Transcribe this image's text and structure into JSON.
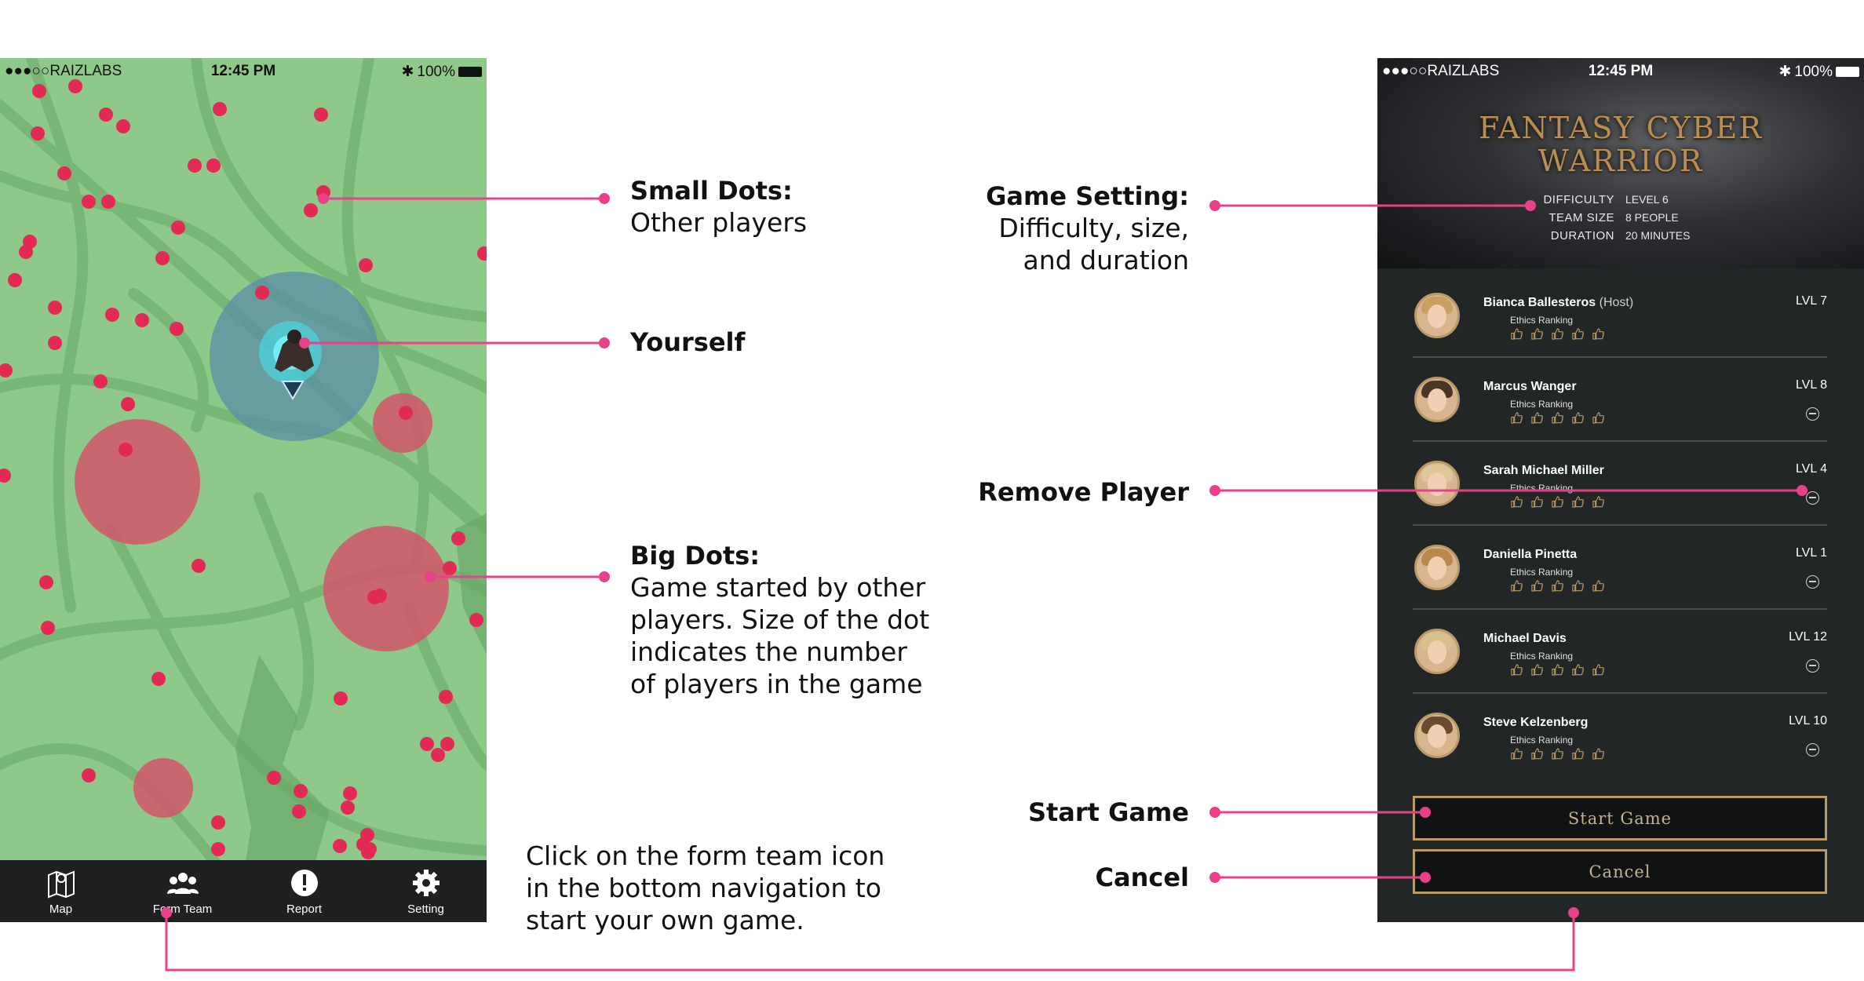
{
  "left_phone": {
    "status": {
      "carrier": "●●●○○RAIZLABS",
      "time": "12:45 PM",
      "battery": "100%"
    },
    "nav": [
      {
        "label": "Map",
        "icon": "map-icon"
      },
      {
        "label": "Form Team",
        "icon": "team-icon"
      },
      {
        "label": "Report",
        "icon": "alert-icon"
      },
      {
        "label": "Setting",
        "icon": "gear-icon"
      }
    ],
    "colors": {
      "map": "#8ec98a",
      "road": "#76b474",
      "player_dot": "#e22a55",
      "game_dot": "#d4566a",
      "nav": "#1f2021"
    }
  },
  "annotations": {
    "small_dots": {
      "title": "Small Dots:",
      "desc": "Other players"
    },
    "yourself": {
      "title": "Yourself"
    },
    "big_dots": {
      "title": "Big Dots:",
      "desc": [
        "Game started by other",
        "players. Size of the dot",
        "indicates the number",
        "of players in the game"
      ]
    },
    "instructions": [
      "Click on the form team icon",
      "in the bottom navigation to",
      "start your own game."
    ],
    "game_setting": {
      "title": "Game Setting:",
      "desc": [
        "Difficulty, size,",
        "and duration"
      ]
    },
    "remove_player": {
      "title": "Remove Player"
    },
    "start_game": {
      "title": "Start Game"
    },
    "cancel": {
      "title": "Cancel"
    },
    "accent_color": "#e8418a"
  },
  "right_phone": {
    "status": {
      "carrier": "●●●○○RAIZLABS",
      "time": "12:45 PM",
      "battery": "100%"
    },
    "title_line1": "FANTASY CYBER",
    "title_line2": "WARRIOR",
    "settings": [
      {
        "key": "DIFFICULTY",
        "value": "LEVEL 6"
      },
      {
        "key": "TEAM SIZE",
        "value": "8 PEOPLE"
      },
      {
        "key": "DURATION",
        "value": "20 MINUTES"
      }
    ],
    "players": [
      {
        "name": "Bianca Ballesteros",
        "host": "(Host)",
        "ranking_label": "Ethics Ranking",
        "level": "LVL 7"
      },
      {
        "name": "Marcus Wanger",
        "host": "",
        "ranking_label": "Ethics Ranking",
        "level": "LVL 8"
      },
      {
        "name": "Sarah Michael Miller",
        "host": "",
        "ranking_label": "Ethics Ranking",
        "level": "LVL 4"
      },
      {
        "name": "Daniella Pinetta",
        "host": "",
        "ranking_label": "Ethics Ranking",
        "level": "LVL 1"
      },
      {
        "name": "Michael Davis",
        "host": "",
        "ranking_label": "Ethics Ranking",
        "level": "LVL 12"
      },
      {
        "name": "Steve Kelzenberg",
        "host": "",
        "ranking_label": "Ethics Ranking",
        "level": "LVL 10"
      }
    ],
    "start_button": "Start Game",
    "cancel_button": "Cancel"
  }
}
